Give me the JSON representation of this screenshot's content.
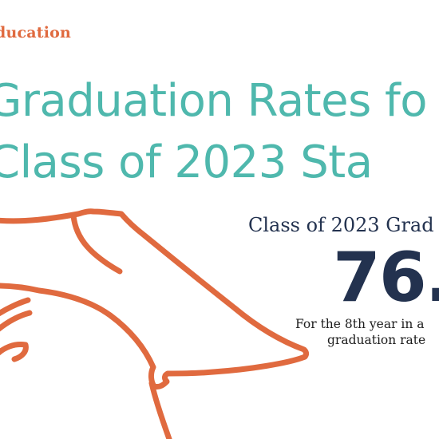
{
  "brand": {
    "name": "ducation"
  },
  "headline": {
    "line1": "Graduation Rates fo",
    "line2": "Class of 2023 Sta"
  },
  "stat": {
    "heading": "Class of 2023 Grad",
    "value": "76.",
    "note_line1": "For the 8th year in a",
    "note_line2": "graduation rate"
  },
  "illustration": {
    "icon": "graduation-cap-line-drawing"
  },
  "colors": {
    "brand_orange": "#e06a3f",
    "headline_teal": "#4fb8ad",
    "navy": "#23324f",
    "illustration_orange": "#e06a3f"
  }
}
